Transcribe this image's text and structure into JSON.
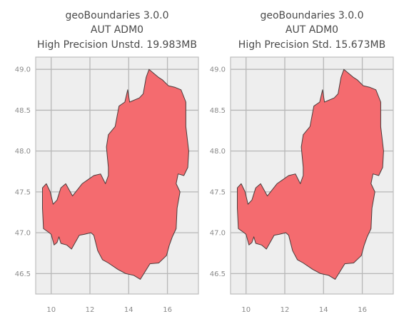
{
  "panels": [
    {
      "title": [
        "geoBoundaries 3.0.0",
        "AUT ADM0",
        "High Precision Unstd. 19.983MB"
      ],
      "xlim": [
        9.2,
        17.6
      ],
      "ylim": [
        46.25,
        49.15
      ],
      "xticks": [
        "10",
        "12",
        "14",
        "16"
      ],
      "yticks": [
        "46.5",
        "47.0",
        "47.5",
        "48.0",
        "48.5",
        "49.0"
      ]
    },
    {
      "title": [
        "geoBoundaries 3.0.0",
        "AUT ADM0",
        "High Precision Std. 15.673MB"
      ],
      "xlim": [
        9.2,
        17.6
      ],
      "ylim": [
        46.25,
        49.15
      ],
      "xticks": [
        "10",
        "12",
        "14",
        "16"
      ],
      "yticks": [
        "46.5",
        "47.0",
        "47.5",
        "48.0",
        "48.5",
        "49.0"
      ]
    }
  ],
  "colors": {
    "fill": "#f46b6f",
    "edge": "#4a3c3c",
    "background": "#eeeeee",
    "grid": "#b7b7b7",
    "frame": "#bdbdbd"
  },
  "outline": [
    [
      9.55,
      47.55
    ],
    [
      9.75,
      47.6
    ],
    [
      9.95,
      47.5
    ],
    [
      10.1,
      47.35
    ],
    [
      10.3,
      47.4
    ],
    [
      10.5,
      47.55
    ],
    [
      10.75,
      47.6
    ],
    [
      11.1,
      47.45
    ],
    [
      11.6,
      47.6
    ],
    [
      11.9,
      47.65
    ],
    [
      12.2,
      47.7
    ],
    [
      12.55,
      47.72
    ],
    [
      12.8,
      47.6
    ],
    [
      12.95,
      47.7
    ],
    [
      12.95,
      47.8
    ],
    [
      12.85,
      48.05
    ],
    [
      12.95,
      48.2
    ],
    [
      13.3,
      48.3
    ],
    [
      13.5,
      48.55
    ],
    [
      13.8,
      48.6
    ],
    [
      13.95,
      48.75
    ],
    [
      14.05,
      48.6
    ],
    [
      14.55,
      48.65
    ],
    [
      14.75,
      48.7
    ],
    [
      14.9,
      48.9
    ],
    [
      15.05,
      49.0
    ],
    [
      15.55,
      48.9
    ],
    [
      15.75,
      48.87
    ],
    [
      16.05,
      48.8
    ],
    [
      16.4,
      48.78
    ],
    [
      16.7,
      48.75
    ],
    [
      16.95,
      48.6
    ],
    [
      16.95,
      48.3
    ],
    [
      17.1,
      48.0
    ],
    [
      17.05,
      47.8
    ],
    [
      16.85,
      47.7
    ],
    [
      16.55,
      47.72
    ],
    [
      16.45,
      47.6
    ],
    [
      16.65,
      47.5
    ],
    [
      16.5,
      47.3
    ],
    [
      16.45,
      47.05
    ],
    [
      16.25,
      46.95
    ],
    [
      16.1,
      46.85
    ],
    [
      15.95,
      46.72
    ],
    [
      15.55,
      46.63
    ],
    [
      15.1,
      46.62
    ],
    [
      14.6,
      46.43
    ],
    [
      14.25,
      46.48
    ],
    [
      13.85,
      46.5
    ],
    [
      13.45,
      46.55
    ],
    [
      12.95,
      46.63
    ],
    [
      12.65,
      46.67
    ],
    [
      12.4,
      46.78
    ],
    [
      12.2,
      46.97
    ],
    [
      12.05,
      47.0
    ],
    [
      11.7,
      46.98
    ],
    [
      11.45,
      46.97
    ],
    [
      11.05,
      46.8
    ],
    [
      10.8,
      46.85
    ],
    [
      10.5,
      46.87
    ],
    [
      10.4,
      46.95
    ],
    [
      10.3,
      46.88
    ],
    [
      10.15,
      46.85
    ],
    [
      10.0,
      46.98
    ],
    [
      9.9,
      47.0
    ],
    [
      9.6,
      47.05
    ],
    [
      9.55,
      47.3
    ]
  ]
}
